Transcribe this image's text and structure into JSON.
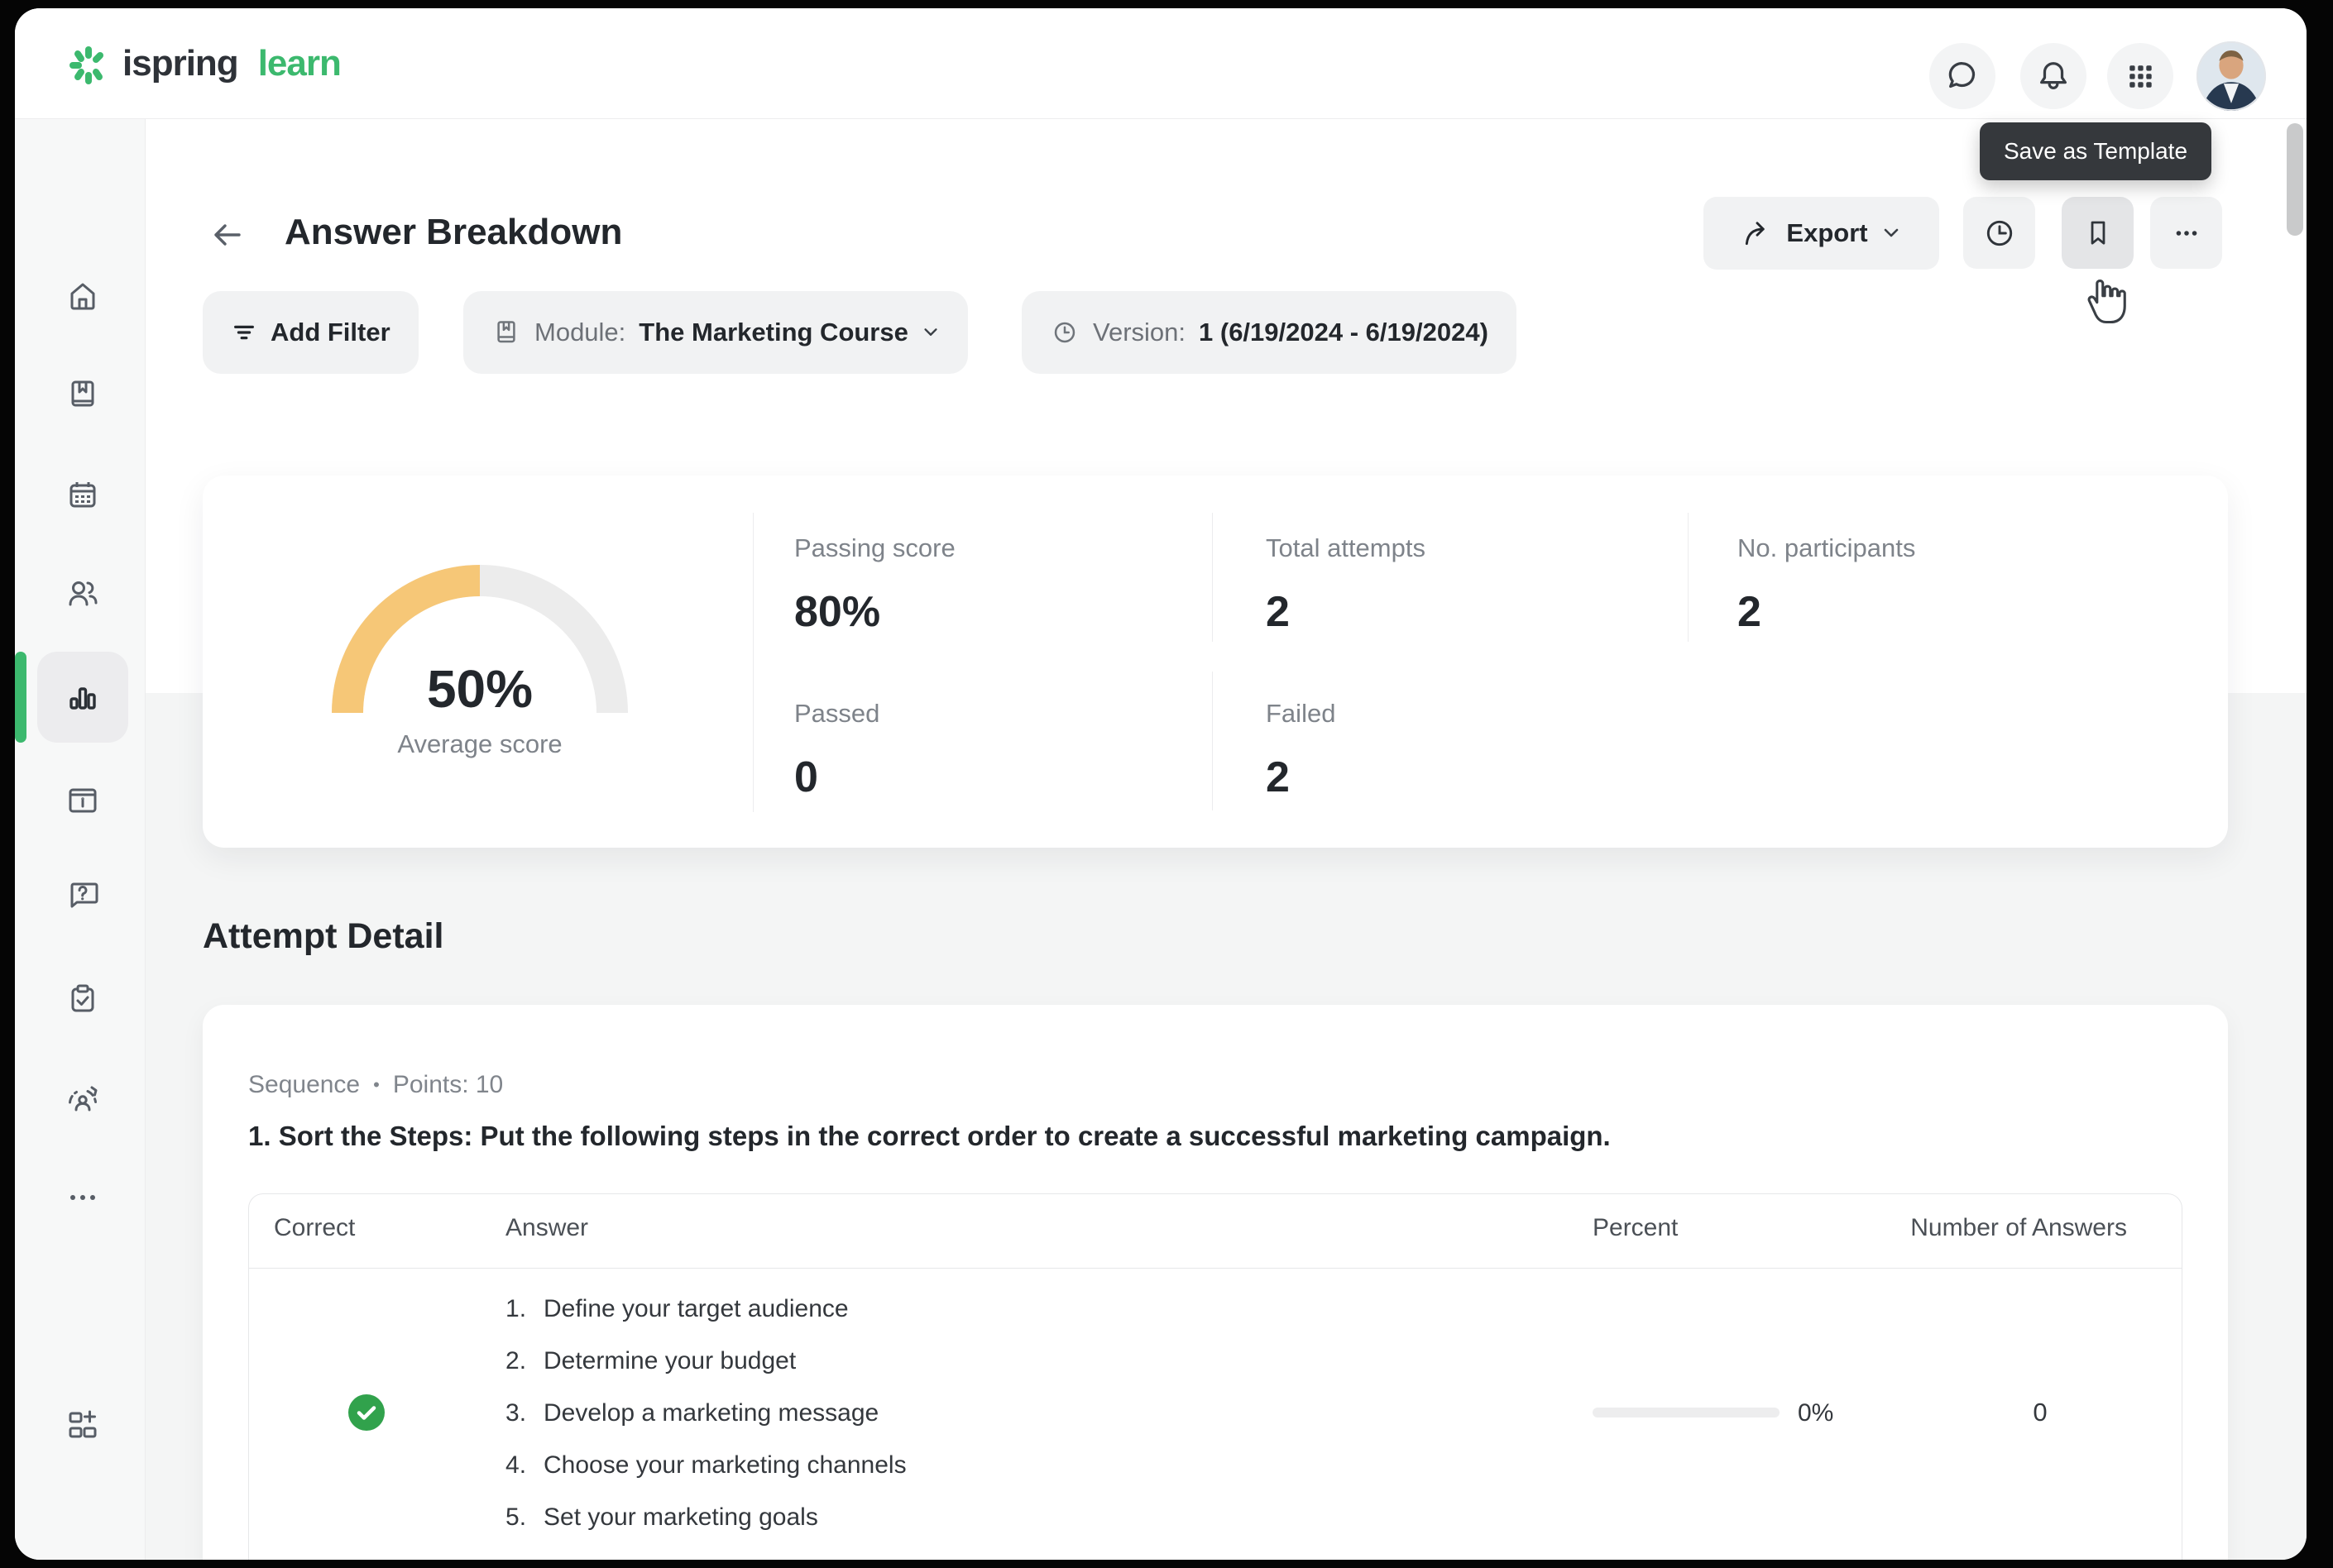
{
  "topbar": {
    "brand_primary": "ispring",
    "brand_secondary": "learn"
  },
  "tooltip": {
    "text": "Save as Template"
  },
  "header": {
    "title": "Answer Breakdown",
    "export_label": "Export"
  },
  "filters": {
    "add_filter_label": "Add Filter",
    "module_label": "Module:",
    "module_value": "The Marketing Course",
    "version_label": "Version:",
    "version_value": "1 (6/19/2024 - 6/19/2024)"
  },
  "summary": {
    "gauge": {
      "percent": 50,
      "value_label": "50%",
      "caption": "Average score",
      "arc_color": "#f6c777",
      "track_color": "#ececec"
    },
    "stats": [
      {
        "label": "Passing score",
        "value": "80%"
      },
      {
        "label": "Total attempts",
        "value": "2"
      },
      {
        "label": "No. participants",
        "value": "2"
      },
      {
        "label": "Passed",
        "value": "0"
      },
      {
        "label": "Failed",
        "value": "2"
      }
    ]
  },
  "attempt_detail": {
    "heading": "Attempt Detail",
    "question": {
      "type": "Sequence",
      "separator": "•",
      "points": "Points: 10",
      "title": "1. Sort the Steps: Put the following steps in the correct order to create a successful marketing campaign."
    },
    "table": {
      "headers": {
        "correct": "Correct",
        "answer": "Answer",
        "percent": "Percent",
        "number_of_answers": "Number of Answers"
      },
      "row": {
        "correct": true,
        "answers": [
          "Define your target audience",
          "Determine your budget",
          "Develop a marketing message",
          "Choose your marketing channels",
          "Set your marketing goals"
        ],
        "percent_label": "0%",
        "percent_value": 0,
        "number_of_answers": "0"
      }
    }
  },
  "colors": {
    "accent_green": "#3cb96e",
    "check_green": "#31a24c",
    "gauge_orange": "#f6c777"
  }
}
